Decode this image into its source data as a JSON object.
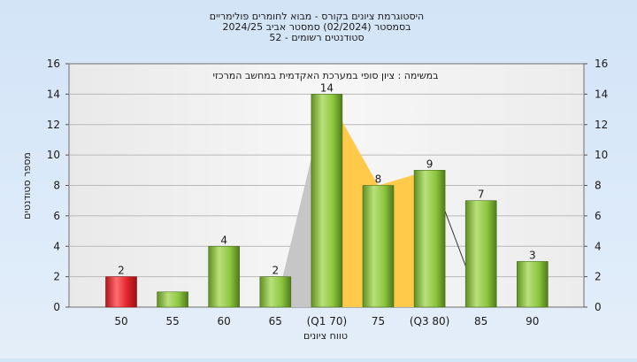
{
  "chart_data": {
    "type": "bar",
    "title_lines": [
      "היסטוגרמת ציונים בקורס - מבוא לחומרים פולימריים",
      "בסמסטר  (02/2024)   סמסטר אביב 2024/25",
      "סטודנטים רשומים - 52"
    ],
    "annotation": "במשימה : ציון סופי במערכת האקדמית במחשב המרכזי",
    "xlabel": "טווח ציונים",
    "ylabel": "מספר סטודנטים",
    "categories": [
      "50",
      "55",
      "60",
      "65",
      "(Q1 70)",
      "75",
      "(Q3 80)",
      "85",
      "90"
    ],
    "values": [
      2,
      1,
      4,
      2,
      14,
      8,
      9,
      7,
      3
    ],
    "data_labels": [
      "2",
      "",
      "4",
      "2",
      "14",
      "8",
      "9",
      "7",
      "3"
    ],
    "highlight_index": 0,
    "yticks": [
      "0",
      "2",
      "4",
      "6",
      "8",
      "10",
      "12",
      "14",
      "16"
    ],
    "ylim": [
      0,
      16
    ],
    "grid": true,
    "colors": {
      "bar": "#8cc63f",
      "highlight_bar": "#e0242b",
      "area_gray": "#c6c6c6",
      "area_yellow": "#ffc94a",
      "plot_background": "#f2f2f2"
    }
  }
}
